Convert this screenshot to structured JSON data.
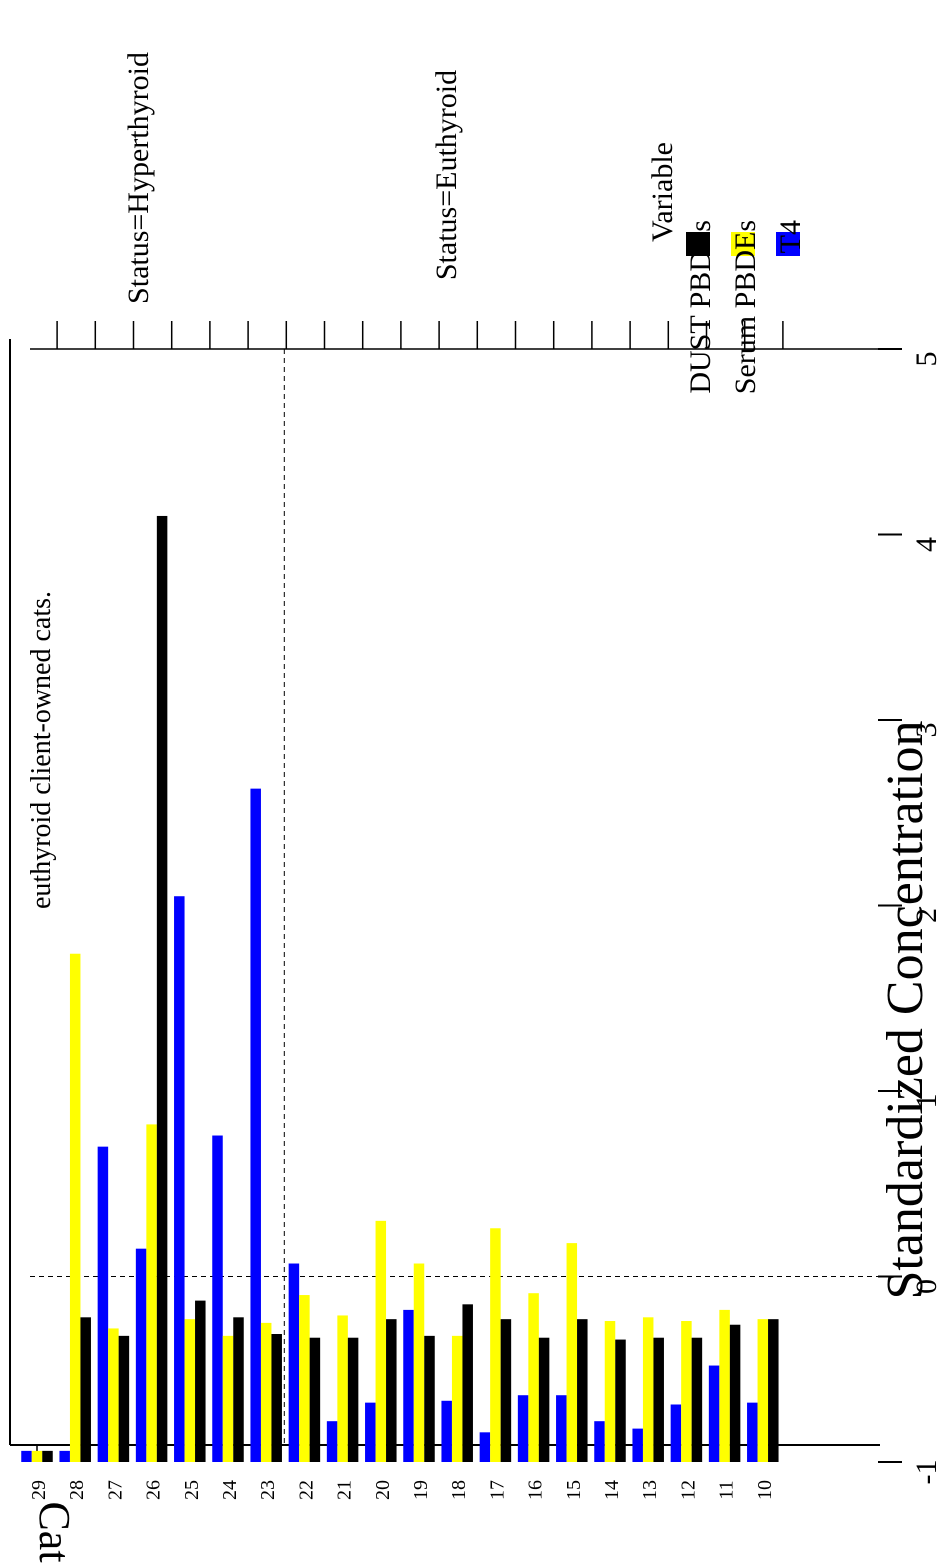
{
  "chart_data": {
    "type": "bar",
    "orientation": "horizontal",
    "text_rotation": "rotated 90 degrees counter-clockwise",
    "annotation": "euthyroid client-owned cats.",
    "xlabel": "Standardized Concentration",
    "ylabel": "Cat",
    "xlim": [
      -1,
      5
    ],
    "xticks": [
      "-1",
      "0",
      "1",
      "2",
      "3",
      "4",
      "5"
    ],
    "reference_line_x": 0,
    "group_separator_between": [
      "23",
      "22"
    ],
    "panels": [
      {
        "label": "Status=Hyperthyroid",
        "categories": [
          "29",
          "28",
          "27",
          "26",
          "25",
          "24",
          "23"
        ]
      },
      {
        "label": "Status=Euthyroid",
        "categories": [
          "22",
          "21",
          "20",
          "19",
          "18",
          "17",
          "16",
          "15",
          "14",
          "13",
          "12",
          "11",
          "10"
        ]
      }
    ],
    "categories": [
      "29",
      "28",
      "27",
      "26",
      "25",
      "24",
      "23",
      "22",
      "21",
      "20",
      "19",
      "18",
      "17",
      "16",
      "15",
      "14",
      "13",
      "12",
      "11",
      "10"
    ],
    "legend": {
      "title": "Variable",
      "position": "top-right"
    },
    "series": [
      {
        "name": "DUST PBDEs",
        "color": "#000000",
        "values": [
          -0.94,
          -0.22,
          -0.32,
          4.1,
          -0.13,
          -0.22,
          -0.31,
          -0.33,
          -0.33,
          -0.23,
          -0.32,
          -0.15,
          -0.23,
          -0.33,
          -0.23,
          -0.34,
          -0.33,
          -0.33,
          -0.26,
          -0.23
        ]
      },
      {
        "name": "Serum PBDEs",
        "color": "#ffff00",
        "values": [
          -0.94,
          1.74,
          -0.28,
          0.82,
          -0.23,
          -0.32,
          -0.25,
          -0.1,
          -0.21,
          0.3,
          0.07,
          -0.32,
          0.26,
          -0.09,
          0.18,
          -0.24,
          -0.22,
          -0.24,
          -0.18,
          -0.23
        ]
      },
      {
        "name": "T4",
        "color": "#0000ff",
        "values": [
          -0.94,
          -0.94,
          0.7,
          0.15,
          2.05,
          0.76,
          2.63,
          0.07,
          -0.78,
          -0.68,
          -0.18,
          -0.67,
          -0.84,
          -0.64,
          -0.64,
          -0.78,
          -0.82,
          -0.69,
          -0.48,
          -0.68
        ]
      }
    ]
  }
}
